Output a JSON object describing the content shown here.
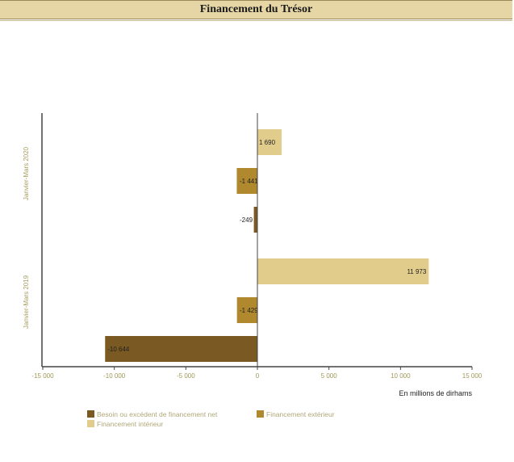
{
  "header": {
    "title": "Financement du Trésor"
  },
  "chart_data": {
    "type": "bar",
    "orientation": "horizontal",
    "xunit_label": "En millions de dirhams",
    "xlim": [
      -15000,
      15000
    ],
    "xticks": [
      -15000,
      -10000,
      -5000,
      0,
      5000,
      10000,
      15000
    ],
    "xtick_labels": [
      "-15 000",
      "-10 000",
      "-5 000",
      "0",
      "5 000",
      "10 000",
      "15 000"
    ],
    "groups": [
      "Janvier-Mars 2020",
      "Janvier-Mars 2019"
    ],
    "series": [
      {
        "name": "Besoin ou excédent de financement net",
        "color": "#7a5a22",
        "values": [
          -249,
          -10644
        ],
        "labels": [
          "-249",
          "-10 644"
        ]
      },
      {
        "name": "Financement extérieur",
        "color": "#b0892f",
        "values": [
          -1441,
          -1429
        ],
        "labels": [
          "-1 441",
          "-1 429"
        ]
      },
      {
        "name": "Financement intérieur",
        "color": "#e2cc8c",
        "values": [
          1690,
          11973
        ],
        "labels": [
          "1 690",
          "11 973"
        ]
      }
    ],
    "grid": false,
    "legend_position": "bottom-left"
  },
  "colors": {
    "header_bg": "#e6d6a6",
    "axis": "#333333"
  }
}
